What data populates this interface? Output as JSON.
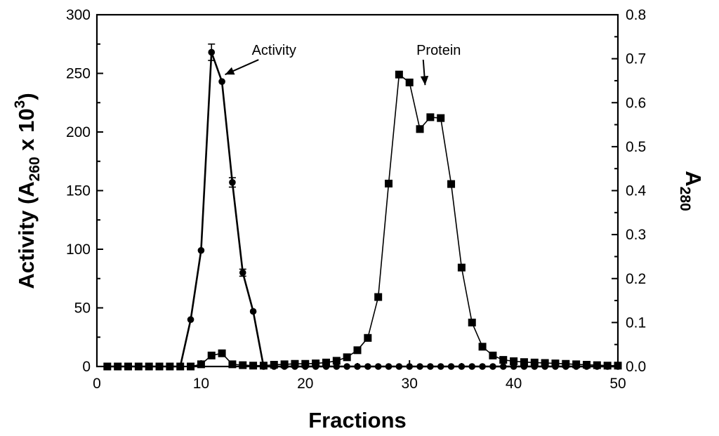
{
  "chart_data": {
    "type": "line",
    "xlabel": "Fractions",
    "ylabel": {
      "prefix": "Activity (A",
      "sub": "260",
      "middle": " x 10",
      "sup": "3",
      "suffix": ")"
    },
    "y2label": {
      "main": "A",
      "sub": "280"
    },
    "xlim": [
      0,
      50
    ],
    "ylim": [
      0,
      300
    ],
    "y2lim": [
      0,
      0.8
    ],
    "x_ticks": [
      "0",
      "10",
      "20",
      "30",
      "40",
      "50"
    ],
    "y_ticks": [
      "0",
      "50",
      "100",
      "150",
      "200",
      "250",
      "300"
    ],
    "y2_ticks": [
      "0.0",
      "0.1",
      "0.2",
      "0.3",
      "0.4",
      "0.5",
      "0.6",
      "0.7",
      "0.8"
    ],
    "grid": false,
    "series": [
      {
        "name": "Activity",
        "axis": "left",
        "marker": "circle",
        "x": [
          1,
          2,
          3,
          4,
          5,
          6,
          7,
          8,
          9,
          10,
          11,
          12,
          13,
          14,
          15,
          16,
          17,
          18,
          19,
          20,
          21,
          22,
          23,
          24,
          25,
          26,
          27,
          28,
          29,
          30,
          31,
          32,
          33,
          34,
          35,
          36,
          37,
          38,
          39,
          40,
          41,
          42,
          43,
          44,
          45,
          46,
          47,
          48,
          49,
          50
        ],
        "values": [
          0,
          0,
          0,
          0,
          0,
          0,
          0,
          0,
          40,
          99,
          268,
          243,
          157,
          80,
          47,
          0,
          0,
          0,
          0,
          0,
          0,
          0,
          0,
          0,
          0,
          0,
          0,
          0,
          0,
          0,
          0,
          0,
          0,
          0,
          0,
          0,
          0,
          0,
          0,
          0,
          0,
          0,
          0,
          0,
          0,
          0,
          0,
          0,
          0,
          0
        ],
        "error": [
          0,
          0,
          0,
          0,
          0,
          0,
          0,
          0,
          0,
          0,
          7,
          0,
          4,
          3,
          0,
          0,
          0,
          0,
          0,
          0,
          0,
          0,
          0,
          0,
          0,
          0,
          0,
          0,
          0,
          0,
          0,
          0,
          0,
          0,
          0,
          0,
          0,
          0,
          0,
          0,
          0,
          0,
          0,
          0,
          0,
          0,
          0,
          0,
          0,
          0
        ]
      },
      {
        "name": "Protein",
        "axis": "right",
        "marker": "square",
        "x": [
          1,
          2,
          3,
          4,
          5,
          6,
          7,
          8,
          9,
          10,
          11,
          12,
          13,
          14,
          15,
          16,
          17,
          18,
          19,
          20,
          21,
          22,
          23,
          24,
          25,
          26,
          27,
          28,
          29,
          30,
          31,
          32,
          33,
          34,
          35,
          36,
          37,
          38,
          39,
          40,
          41,
          42,
          43,
          44,
          45,
          46,
          47,
          48,
          49,
          50
        ],
        "values": [
          0,
          0,
          0,
          0,
          0,
          0,
          0,
          0,
          0,
          0.005,
          0.025,
          0.03,
          0.005,
          0.003,
          0.002,
          0.002,
          0.004,
          0.005,
          0.006,
          0.006,
          0.007,
          0.009,
          0.013,
          0.021,
          0.037,
          0.065,
          0.158,
          0.416,
          0.664,
          0.646,
          0.54,
          0.567,
          0.565,
          0.415,
          0.225,
          0.1,
          0.045,
          0.025,
          0.015,
          0.012,
          0.01,
          0.009,
          0.008,
          0.007,
          0.006,
          0.005,
          0.004,
          0.003,
          0.002,
          0.002
        ]
      }
    ],
    "annotations": [
      {
        "text": "Activity",
        "x": 17,
        "y": 270,
        "arrow_to_x": 12.3,
        "arrow_to_y": 249
      },
      {
        "text": "Protein",
        "x": 32.8,
        "y": 270,
        "arrow_to_x": 31.5,
        "arrow_to_y": 240
      }
    ]
  }
}
